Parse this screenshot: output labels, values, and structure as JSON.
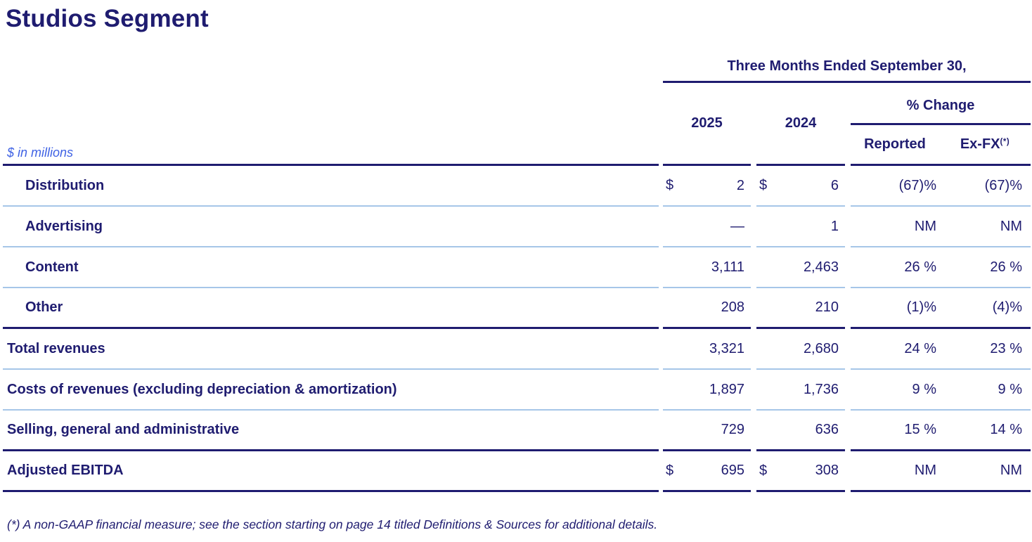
{
  "page": {
    "title": "Studios Segment",
    "units_label": "$ in millions",
    "footnote": "(*) A non-GAAP financial measure; see the section starting on page 14 titled Definitions & Sources for additional details."
  },
  "table": {
    "period_header": "Three Months Ended September 30,",
    "columns": {
      "y2025": "2025",
      "y2024": "2024",
      "pct_change": "% Change",
      "reported": "Reported",
      "exfx": "Ex-FX",
      "exfx_marker": "(*)"
    },
    "rows": [
      {
        "label": "Distribution",
        "cur2025": "$",
        "v2025": "2",
        "cur2024": "$",
        "v2024": "6",
        "reported": "(67)%",
        "exfx": "(67)%"
      },
      {
        "label": "Advertising",
        "cur2025": "",
        "v2025": "—",
        "cur2024": "",
        "v2024": "1",
        "reported": "NM",
        "exfx": "NM"
      },
      {
        "label": "Content",
        "cur2025": "",
        "v2025": "3,111",
        "cur2024": "",
        "v2024": "2,463",
        "reported": "26 %",
        "exfx": "26 %"
      },
      {
        "label": "Other",
        "cur2025": "",
        "v2025": "208",
        "cur2024": "",
        "v2024": "210",
        "reported": "(1)%",
        "exfx": "(4)%"
      },
      {
        "label": "Total revenues",
        "cur2025": "",
        "v2025": "3,321",
        "cur2024": "",
        "v2024": "2,680",
        "reported": "24 %",
        "exfx": "23 %"
      },
      {
        "label": "Costs of revenues (excluding depreciation & amortization)",
        "cur2025": "",
        "v2025": "1,897",
        "cur2024": "",
        "v2024": "1,736",
        "reported": "9 %",
        "exfx": "9 %"
      },
      {
        "label": "Selling, general and administrative",
        "cur2025": "",
        "v2025": "729",
        "cur2024": "",
        "v2024": "636",
        "reported": "15 %",
        "exfx": "14 %"
      },
      {
        "label": "Adjusted EBITDA",
        "cur2025": "$",
        "v2025": "695",
        "cur2024": "$",
        "v2024": "308",
        "reported": "NM",
        "exfx": "NM"
      }
    ]
  },
  "colors": {
    "navy": "#1F1C70",
    "accent_blue": "#3F62E4",
    "light_rule": "#A6C6E8"
  }
}
